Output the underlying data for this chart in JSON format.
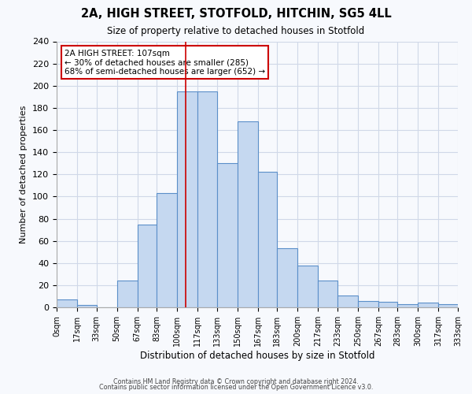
{
  "title": "2A, HIGH STREET, STOTFOLD, HITCHIN, SG5 4LL",
  "subtitle": "Size of property relative to detached houses in Stotfold",
  "xlabel": "Distribution of detached houses by size in Stotfold",
  "ylabel": "Number of detached properties",
  "bin_edges": [
    0,
    17,
    33,
    50,
    67,
    83,
    100,
    117,
    133,
    150,
    167,
    183,
    200,
    217,
    233,
    250,
    267,
    283,
    300,
    317,
    333
  ],
  "bar_heights": [
    7,
    2,
    0,
    24,
    75,
    103,
    195,
    195,
    130,
    168,
    122,
    53,
    38,
    24,
    11,
    6,
    5,
    3,
    4,
    3
  ],
  "bar_color": "#c5d8f0",
  "bar_edge_color": "#5b8fc9",
  "property_size": 107,
  "vline_color": "#cc0000",
  "annotation_line1": "2A HIGH STREET: 107sqm",
  "annotation_line2": "← 30% of detached houses are smaller (285)",
  "annotation_line3": "68% of semi-detached houses are larger (652) →",
  "annotation_box_color": "#ffffff",
  "annotation_box_edge": "#cc0000",
  "ylim": [
    0,
    240
  ],
  "yticks": [
    0,
    20,
    40,
    60,
    80,
    100,
    120,
    140,
    160,
    180,
    200,
    220,
    240
  ],
  "tick_labels": [
    "0sqm",
    "17sqm",
    "33sqm",
    "50sqm",
    "67sqm",
    "83sqm",
    "100sqm",
    "117sqm",
    "133sqm",
    "150sqm",
    "167sqm",
    "183sqm",
    "200sqm",
    "217sqm",
    "233sqm",
    "250sqm",
    "267sqm",
    "283sqm",
    "300sqm",
    "317sqm",
    "333sqm"
  ],
  "footer1": "Contains HM Land Registry data © Crown copyright and database right 2024.",
  "footer2": "Contains public sector information licensed under the Open Government Licence v3.0.",
  "bg_color": "#f7f9fd",
  "grid_color": "#d0d8e8",
  "title_fontsize": 10.5,
  "subtitle_fontsize": 8.5
}
